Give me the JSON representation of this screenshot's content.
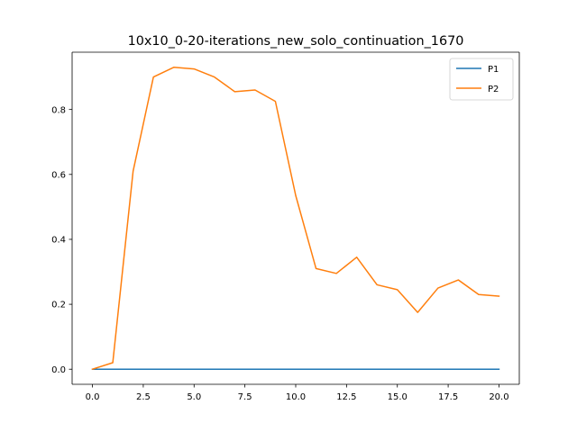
{
  "chart_data": {
    "type": "line",
    "title": "10x10_0-20-iterations_new_solo_continuation_1670",
    "xlabel": "",
    "ylabel": "",
    "xlim": [
      -1.0,
      21.0
    ],
    "ylim": [
      -0.0465,
      0.9765
    ],
    "x_ticks": [
      0.0,
      2.5,
      5.0,
      7.5,
      10.0,
      12.5,
      15.0,
      17.5,
      20.0
    ],
    "x_tick_labels": [
      "0.0",
      "2.5",
      "5.0",
      "7.5",
      "10.0",
      "12.5",
      "15.0",
      "17.5",
      "20.0"
    ],
    "y_ticks": [
      0.0,
      0.2,
      0.4,
      0.6,
      0.8
    ],
    "y_tick_labels": [
      "0.0",
      "0.2",
      "0.4",
      "0.6",
      "0.8"
    ],
    "grid": false,
    "legend_position": "upper right",
    "x": [
      0,
      1,
      2,
      3,
      4,
      5,
      6,
      7,
      8,
      9,
      10,
      11,
      12,
      13,
      14,
      15,
      16,
      17,
      18,
      19,
      20
    ],
    "series": [
      {
        "name": "P1",
        "color": "#1f77b4",
        "values": [
          0,
          0,
          0,
          0,
          0,
          0,
          0,
          0,
          0,
          0,
          0,
          0,
          0,
          0,
          0,
          0,
          0,
          0,
          0,
          0,
          0
        ]
      },
      {
        "name": "P2",
        "color": "#ff7f0e",
        "values": [
          0.0,
          0.02,
          0.61,
          0.9,
          0.93,
          0.925,
          0.9,
          0.855,
          0.86,
          0.825,
          0.535,
          0.31,
          0.295,
          0.345,
          0.26,
          0.245,
          0.175,
          0.25,
          0.275,
          0.23,
          0.225
        ]
      }
    ]
  }
}
